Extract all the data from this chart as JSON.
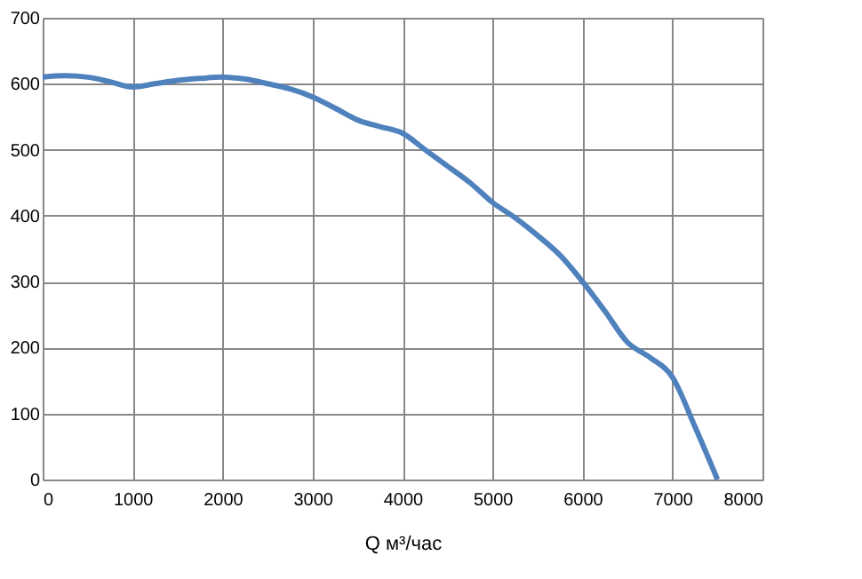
{
  "chart_data": {
    "type": "line",
    "xlabel": "Q м³/час",
    "x": [
      0,
      250,
      500,
      750,
      1000,
      1250,
      1500,
      1750,
      2000,
      2250,
      2500,
      2750,
      3000,
      3250,
      3500,
      3750,
      4000,
      4250,
      4500,
      4750,
      5000,
      5250,
      5500,
      5750,
      6000,
      6250,
      6500,
      6750,
      7000,
      7250,
      7500
    ],
    "series": [
      {
        "color": "#4f81bd",
        "values": [
          610,
          612,
          610,
          603,
          595,
          600,
          605,
          608,
          610,
          607,
          600,
          592,
          580,
          563,
          545,
          535,
          525,
          500,
          475,
          450,
          420,
          397,
          370,
          340,
          300,
          255,
          208,
          185,
          155,
          80,
          0
        ]
      }
    ],
    "xlim": [
      0,
      8000
    ],
    "xticks": [
      0,
      1000,
      2000,
      3000,
      4000,
      5000,
      6000,
      7000,
      8000
    ],
    "ylim": [
      0,
      700
    ],
    "yticks": [
      0,
      100,
      200,
      300,
      400,
      500,
      600,
      700
    ],
    "grid": true,
    "marker": "none",
    "line_style": "solid"
  }
}
